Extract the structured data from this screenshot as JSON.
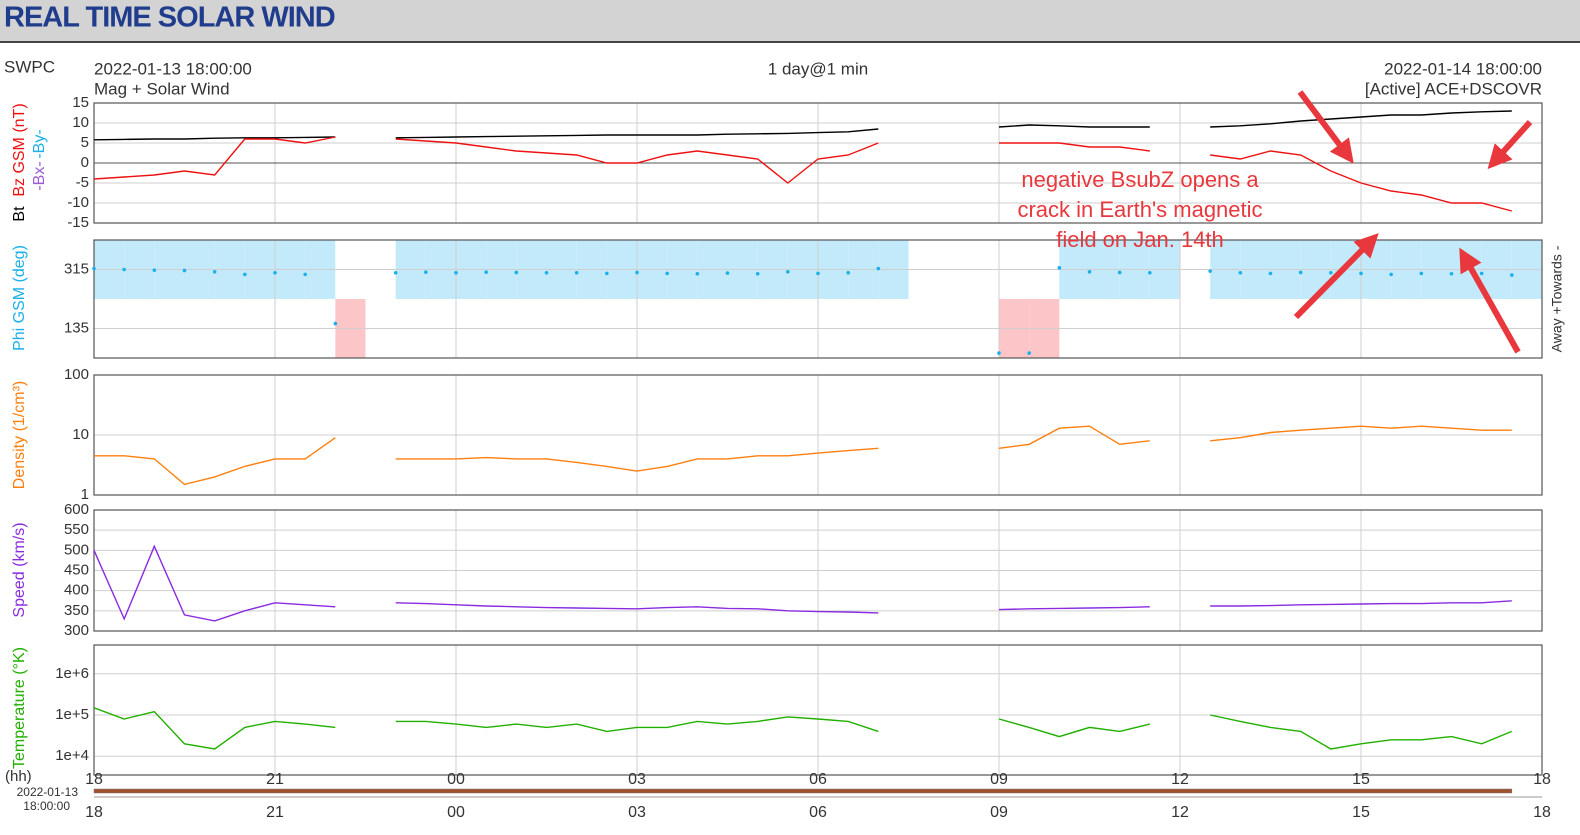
{
  "header": {
    "title": "REAL TIME SOLAR WIND"
  },
  "info": {
    "source": "SWPC",
    "start": "2022-01-13 18:00:00",
    "product": "Mag + Solar Wind",
    "resolution": "1 day@1 min",
    "end": "2022-01-14 18:00:00",
    "spacecraft": "[Active] ACE+DSCOVR"
  },
  "annotation": {
    "lines": [
      "negative BsubZ opens a",
      "crack in Earth's magnetic",
      "field on Jan. 14th"
    ]
  },
  "x_axis": {
    "xlabel": "(hh)",
    "slider_start": [
      "2022-01-13",
      "18:00:00"
    ],
    "xlim": [
      0,
      24
    ],
    "xticks": [
      {
        "value": 0,
        "label": "18"
      },
      {
        "value": 3,
        "label": "21"
      },
      {
        "value": 6,
        "label": "00"
      },
      {
        "value": 9,
        "label": "03"
      },
      {
        "value": 12,
        "label": "06"
      },
      {
        "value": 15,
        "label": "09"
      },
      {
        "value": 18,
        "label": "12"
      },
      {
        "value": 21,
        "label": "15"
      },
      {
        "value": 24,
        "label": "18"
      }
    ],
    "x": [
      0,
      0.5,
      1,
      1.5,
      2,
      2.5,
      3,
      3.5,
      4,
      4.5,
      5,
      5.5,
      6,
      6.5,
      7,
      7.5,
      8,
      8.5,
      9,
      9.5,
      10,
      10.5,
      11,
      11.5,
      12,
      12.5,
      13,
      13.5,
      14,
      14.5,
      15,
      15.5,
      16,
      16.5,
      17,
      17.5,
      18,
      18.5,
      19,
      19.5,
      20,
      20.5,
      21,
      21.5,
      22,
      22.5,
      23,
      23.5,
      24
    ]
  },
  "chart_data": [
    {
      "type": "line",
      "ylabels": [
        {
          "text": "Bz GSM (nT)",
          "color": "#ee1111"
        },
        {
          "text": "Bt",
          "color": "#000000"
        },
        {
          "text": "-Bx-",
          "color": "#9b59d6"
        },
        {
          "text": "-By-",
          "color": "#1ab0ec"
        }
      ],
      "ylim": [
        -15,
        15
      ],
      "yticks": [
        -15,
        -10,
        -5,
        0,
        5,
        10,
        15
      ],
      "grid": true,
      "log": false,
      "series": [
        {
          "name": "Bt",
          "color": "#000000",
          "values": [
            5.8,
            5.9,
            6,
            6,
            6.2,
            6.3,
            6.3,
            6.4,
            6.5,
            null,
            6.3,
            6.4,
            6.5,
            6.6,
            6.7,
            6.8,
            6.9,
            7,
            7,
            7,
            7,
            7.2,
            7.3,
            7.4,
            7.6,
            7.8,
            8.5,
            null,
            null,
            null,
            9,
            9.5,
            9.3,
            9,
            9,
            9,
            null,
            9,
            9.3,
            9.8,
            10.5,
            11,
            11.5,
            12,
            12,
            12.5,
            12.8,
            13,
            null
          ]
        },
        {
          "name": "Bz",
          "color": "#ee1111",
          "values": [
            -4,
            -3.5,
            -3,
            -2,
            -3,
            6,
            6,
            5,
            6.5,
            null,
            6,
            5.5,
            5,
            4,
            3,
            2.5,
            2,
            0,
            0,
            2,
            3,
            2,
            1,
            -5,
            1,
            2,
            5,
            null,
            null,
            null,
            5,
            5,
            5,
            4,
            4,
            3,
            null,
            2,
            1,
            3,
            2,
            -2,
            -5,
            -7,
            -8,
            -10,
            -10,
            -12,
            null
          ]
        }
      ]
    },
    {
      "type": "scatter",
      "ylabels": [
        {
          "text": "Phi GSM (deg)",
          "color": "#1ab0ec"
        }
      ],
      "y2label": "Away +Towards -",
      "ylim": [
        45,
        405
      ],
      "yticks": [
        135,
        315
      ],
      "grid": true,
      "log": false,
      "series": [
        {
          "name": "Phi",
          "color": "#1ab0ec",
          "values": [
            318,
            315,
            313,
            312,
            308,
            300,
            305,
            300,
            150,
            null,
            305,
            307,
            305,
            307,
            306,
            305,
            305,
            303,
            306,
            303,
            302,
            304,
            302,
            308,
            303,
            305,
            318,
            null,
            null,
            null,
            60,
            60,
            320,
            308,
            306,
            305,
            null,
            310,
            305,
            303,
            306,
            305,
            303,
            300,
            303,
            302,
            303,
            298,
            null
          ]
        }
      ]
    },
    {
      "type": "line",
      "ylabels": [
        {
          "text": "Density (1/cm³)",
          "color": "#ff7f0e"
        }
      ],
      "ylim": [
        1,
        100
      ],
      "yticks": [
        1,
        10,
        100
      ],
      "grid": true,
      "log": true,
      "series": [
        {
          "name": "Density",
          "color": "#ff7f0e",
          "values": [
            4.5,
            4.5,
            4,
            1.5,
            2,
            3,
            4,
            4,
            9,
            null,
            4,
            4,
            4,
            4.2,
            4,
            4,
            3.5,
            3,
            2.5,
            3,
            4,
            4,
            4.5,
            4.5,
            5,
            5.5,
            6,
            null,
            null,
            null,
            6,
            7,
            13,
            14,
            7,
            8,
            null,
            8,
            9,
            11,
            12,
            13,
            14,
            13,
            14,
            13,
            12,
            12,
            null
          ]
        }
      ]
    },
    {
      "type": "line",
      "ylabels": [
        {
          "text": "Speed (km/s)",
          "color": "#8a2be2"
        }
      ],
      "ylim": [
        300,
        600
      ],
      "yticks": [
        300,
        350,
        400,
        450,
        500,
        550,
        600
      ],
      "grid": true,
      "log": false,
      "series": [
        {
          "name": "Speed",
          "color": "#8a2be2",
          "values": [
            500,
            330,
            510,
            340,
            325,
            350,
            370,
            365,
            360,
            null,
            370,
            368,
            365,
            362,
            360,
            358,
            357,
            356,
            355,
            358,
            360,
            356,
            355,
            350,
            348,
            347,
            345,
            null,
            null,
            null,
            353,
            355,
            356,
            357,
            358,
            360,
            null,
            362,
            362,
            363,
            365,
            366,
            367,
            368,
            368,
            370,
            370,
            375,
            null
          ]
        }
      ]
    },
    {
      "type": "line",
      "ylabels": [
        {
          "text": "Temperature (°K)",
          "color": "#22b000"
        }
      ],
      "ylim": [
        3500,
        5000000
      ],
      "yticks": [
        {
          "value": 10000,
          "label": "1e+4"
        },
        {
          "value": 100000,
          "label": "1e+5"
        },
        {
          "value": 1000000,
          "label": "1e+6"
        }
      ],
      "grid": true,
      "log": true,
      "series": [
        {
          "name": "Temperature",
          "color": "#22b000",
          "values": [
            150000,
            80000,
            120000,
            20000,
            15000,
            50000,
            70000,
            60000,
            50000,
            null,
            70000,
            70000,
            60000,
            50000,
            60000,
            50000,
            60000,
            40000,
            50000,
            50000,
            70000,
            60000,
            70000,
            90000,
            80000,
            70000,
            40000,
            null,
            null,
            null,
            80000,
            50000,
            30000,
            50000,
            40000,
            60000,
            null,
            100000,
            70000,
            50000,
            40000,
            15000,
            20000,
            25000,
            25000,
            30000,
            20000,
            40000,
            null
          ]
        }
      ]
    }
  ]
}
